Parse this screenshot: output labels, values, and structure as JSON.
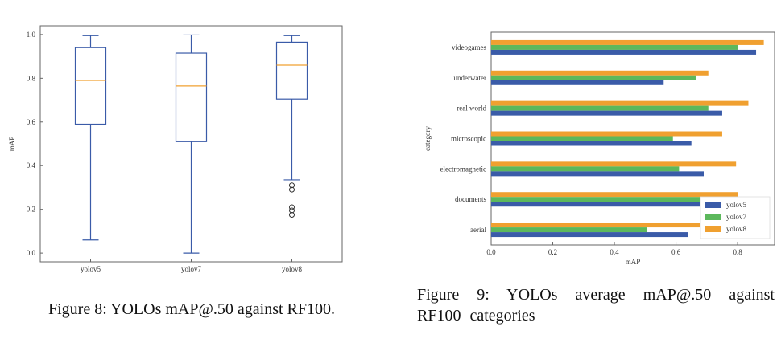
{
  "figure8": {
    "caption": "Figure 8: YOLOs mAP@.50 against RF100.",
    "chart_data": {
      "type": "box",
      "title": "",
      "xlabel": "",
      "ylabel": "mAP",
      "ylim": [
        -0.04,
        1.04
      ],
      "yticks": [
        "0.0",
        "0.2",
        "0.4",
        "0.6",
        "0.8",
        "1.0"
      ],
      "categories": [
        "yolov5",
        "yolov7",
        "yolov8"
      ],
      "boxes": [
        {
          "name": "yolov5",
          "whisker_low": 0.06,
          "q1": 0.59,
          "median": 0.79,
          "q3": 0.94,
          "whisker_high": 0.995,
          "outliers": []
        },
        {
          "name": "yolov7",
          "whisker_low": 0.0,
          "q1": 0.51,
          "median": 0.765,
          "q3": 0.915,
          "whisker_high": 0.998,
          "outliers": []
        },
        {
          "name": "yolov8",
          "whisker_low": 0.335,
          "q1": 0.705,
          "median": 0.86,
          "q3": 0.965,
          "whisker_high": 0.995,
          "outliers": [
            0.31,
            0.29,
            0.21,
            0.195,
            0.175
          ]
        }
      ],
      "colors": {
        "box": "#3a5ba8",
        "median": "#f0a030",
        "outlier": "#333333"
      },
      "grid": false
    }
  },
  "figure9": {
    "caption": "Figure 9: YOLOs average mAP@.50 against RF100 categories",
    "chart_data": {
      "type": "bar",
      "orientation": "horizontal",
      "title": "",
      "xlabel": "mAP",
      "ylabel": "category",
      "xlim": [
        0,
        0.92
      ],
      "xticks": [
        "0.0",
        "0.2",
        "0.4",
        "0.6",
        "0.8"
      ],
      "categories": [
        "videogames",
        "underwater",
        "real world",
        "microscopic",
        "electromagnetic",
        "documents",
        "aerial"
      ],
      "series": [
        {
          "name": "yolov5",
          "color": "#3a5ba8",
          "values": [
            0.86,
            0.56,
            0.75,
            0.65,
            0.69,
            0.715,
            0.64
          ]
        },
        {
          "name": "yolov7",
          "color": "#5cb85c",
          "values": [
            0.8,
            0.665,
            0.705,
            0.59,
            0.61,
            0.725,
            0.505
          ]
        },
        {
          "name": "yolov8",
          "color": "#f0a030",
          "values": [
            0.885,
            0.705,
            0.835,
            0.75,
            0.795,
            0.8,
            0.71
          ]
        }
      ],
      "legend": "bottom-right",
      "grid": false
    }
  }
}
